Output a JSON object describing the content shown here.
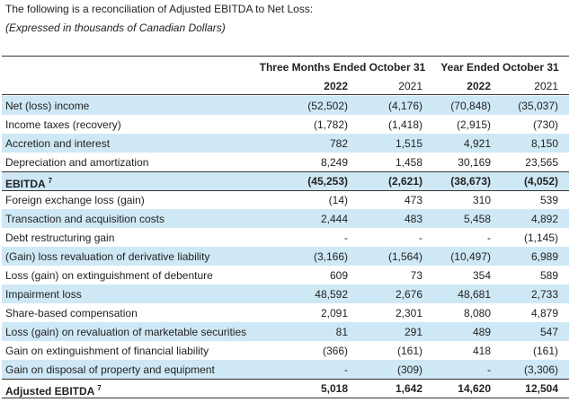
{
  "intro": "The following is a reconciliation of Adjusted EBITDA to Net Loss:",
  "units_note": "(Expressed in thousands of Canadian Dollars)",
  "table": {
    "period_headers": [
      "Three Months Ended October 31",
      "Year Ended October 31"
    ],
    "year_headers": [
      "2022",
      "2021",
      "2022",
      "2021"
    ],
    "rows": [
      {
        "label": "Net (loss) income",
        "values": [
          "(52,502)",
          "(4,176)",
          "(70,848)",
          "(35,037)"
        ]
      },
      {
        "label": "Income taxes (recovery)",
        "values": [
          "(1,782)",
          "(1,418)",
          "(2,915)",
          "(730)"
        ]
      },
      {
        "label": "Accretion and interest",
        "values": [
          "782",
          "1,515",
          "4,921",
          "8,150"
        ]
      },
      {
        "label": "Depreciation and amortization",
        "values": [
          "8,249",
          "1,458",
          "30,169",
          "23,565"
        ]
      },
      {
        "label": "EBITDA",
        "note": "7",
        "bold": true,
        "values": [
          "(45,253)",
          "(2,621)",
          "(38,673)",
          "(4,052)"
        ]
      },
      {
        "label": "Foreign exchange loss (gain)",
        "values": [
          "(14)",
          "473",
          "310",
          "539"
        ]
      },
      {
        "label": "Transaction and acquisition costs",
        "values": [
          "2,444",
          "483",
          "5,458",
          "4,892"
        ]
      },
      {
        "label": "Debt restructuring gain",
        "values": [
          "-",
          "-",
          "-",
          "(1,145)"
        ]
      },
      {
        "label": "(Gain) loss revaluation of derivative liability",
        "values": [
          "(3,166)",
          "(1,564)",
          "(10,497)",
          "6,989"
        ]
      },
      {
        "label": "Loss (gain) on extinguishment of debenture",
        "values": [
          "609",
          "73",
          "354",
          "589"
        ]
      },
      {
        "label": "Impairment loss",
        "values": [
          "48,592",
          "2,676",
          "48,681",
          "2,733"
        ]
      },
      {
        "label": "Share-based compensation",
        "values": [
          "2,091",
          "2,301",
          "8,080",
          "4,879"
        ]
      },
      {
        "label": "Loss (gain) on revaluation of marketable securities",
        "values": [
          "81",
          "291",
          "489",
          "547"
        ]
      },
      {
        "label": "Gain on extinguishment of financial liability",
        "values": [
          "(366)",
          "(161)",
          "418",
          "(161)"
        ]
      },
      {
        "label": "Gain on disposal of property and equipment",
        "values": [
          "-",
          "(309)",
          "-",
          "(3,306)"
        ]
      },
      {
        "label": "Adjusted EBITDA",
        "note": "7",
        "bold": true,
        "values": [
          "5,018",
          "1,642",
          "14,620",
          "12,504"
        ]
      }
    ]
  }
}
